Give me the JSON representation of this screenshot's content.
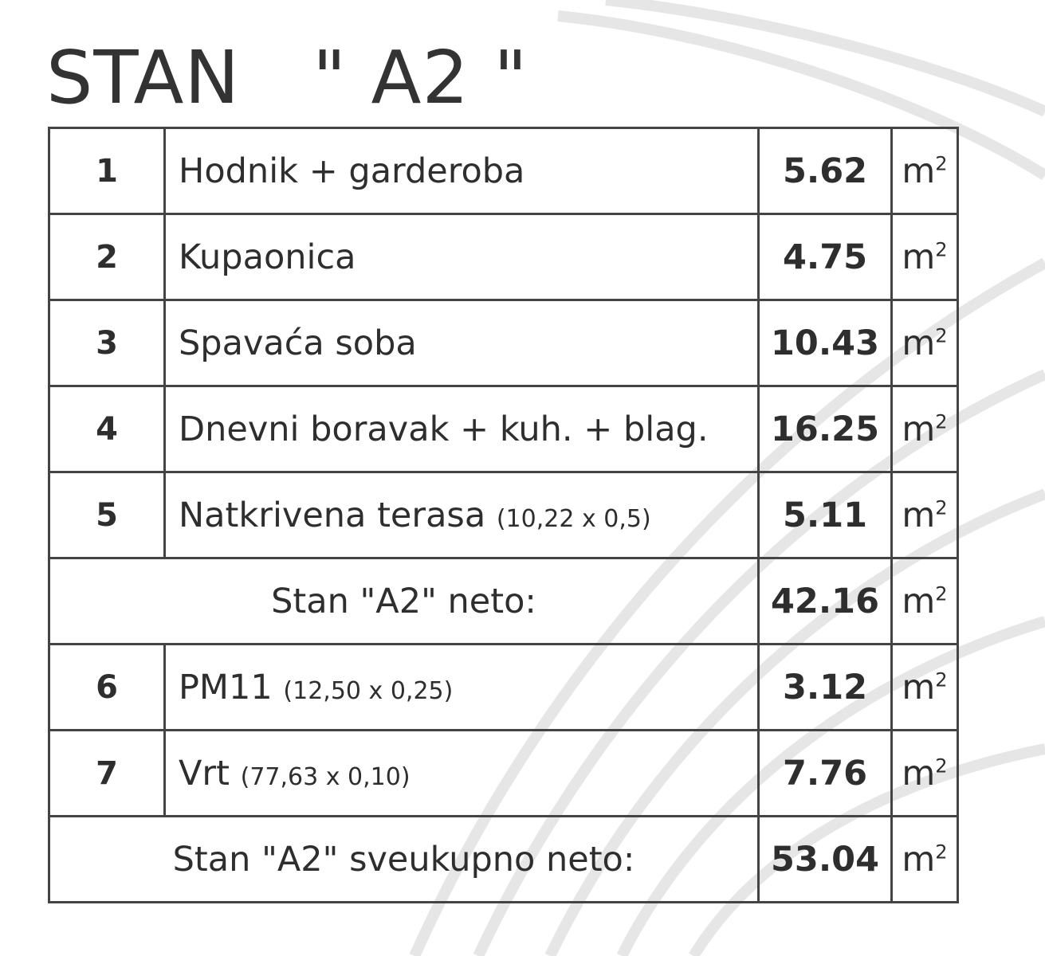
{
  "title": "STAN   \" A2 \"",
  "unit": "m",
  "unit_sup": "2",
  "rows": [
    {
      "no": "1",
      "name": "Hodnik + garderoba",
      "dim": "",
      "area": "5.62"
    },
    {
      "no": "2",
      "name": "Kupaonica",
      "dim": "",
      "area": "4.75"
    },
    {
      "no": "3",
      "name": "Spavaća soba",
      "dim": "",
      "area": "10.43"
    },
    {
      "no": "4",
      "name": "Dnevni boravak + kuh. + blag.",
      "dim": "",
      "area": "16.25"
    },
    {
      "no": "5",
      "name": "Natkrivena terasa ",
      "dim": "(10,22 x 0,5)",
      "area": "5.11"
    }
  ],
  "subtotal": {
    "label": "Stan \"A2\" neto:",
    "area": "42.16"
  },
  "rows2": [
    {
      "no": "6",
      "name": "PM11 ",
      "dim": "(12,50 x 0,25)",
      "area": "3.12"
    },
    {
      "no": "7",
      "name": "Vrt ",
      "dim": "(77,63 x 0,10)",
      "area": "7.76"
    }
  ],
  "total": {
    "label": "Stan \"A2\" sveukupno neto:",
    "area": "53.04"
  }
}
